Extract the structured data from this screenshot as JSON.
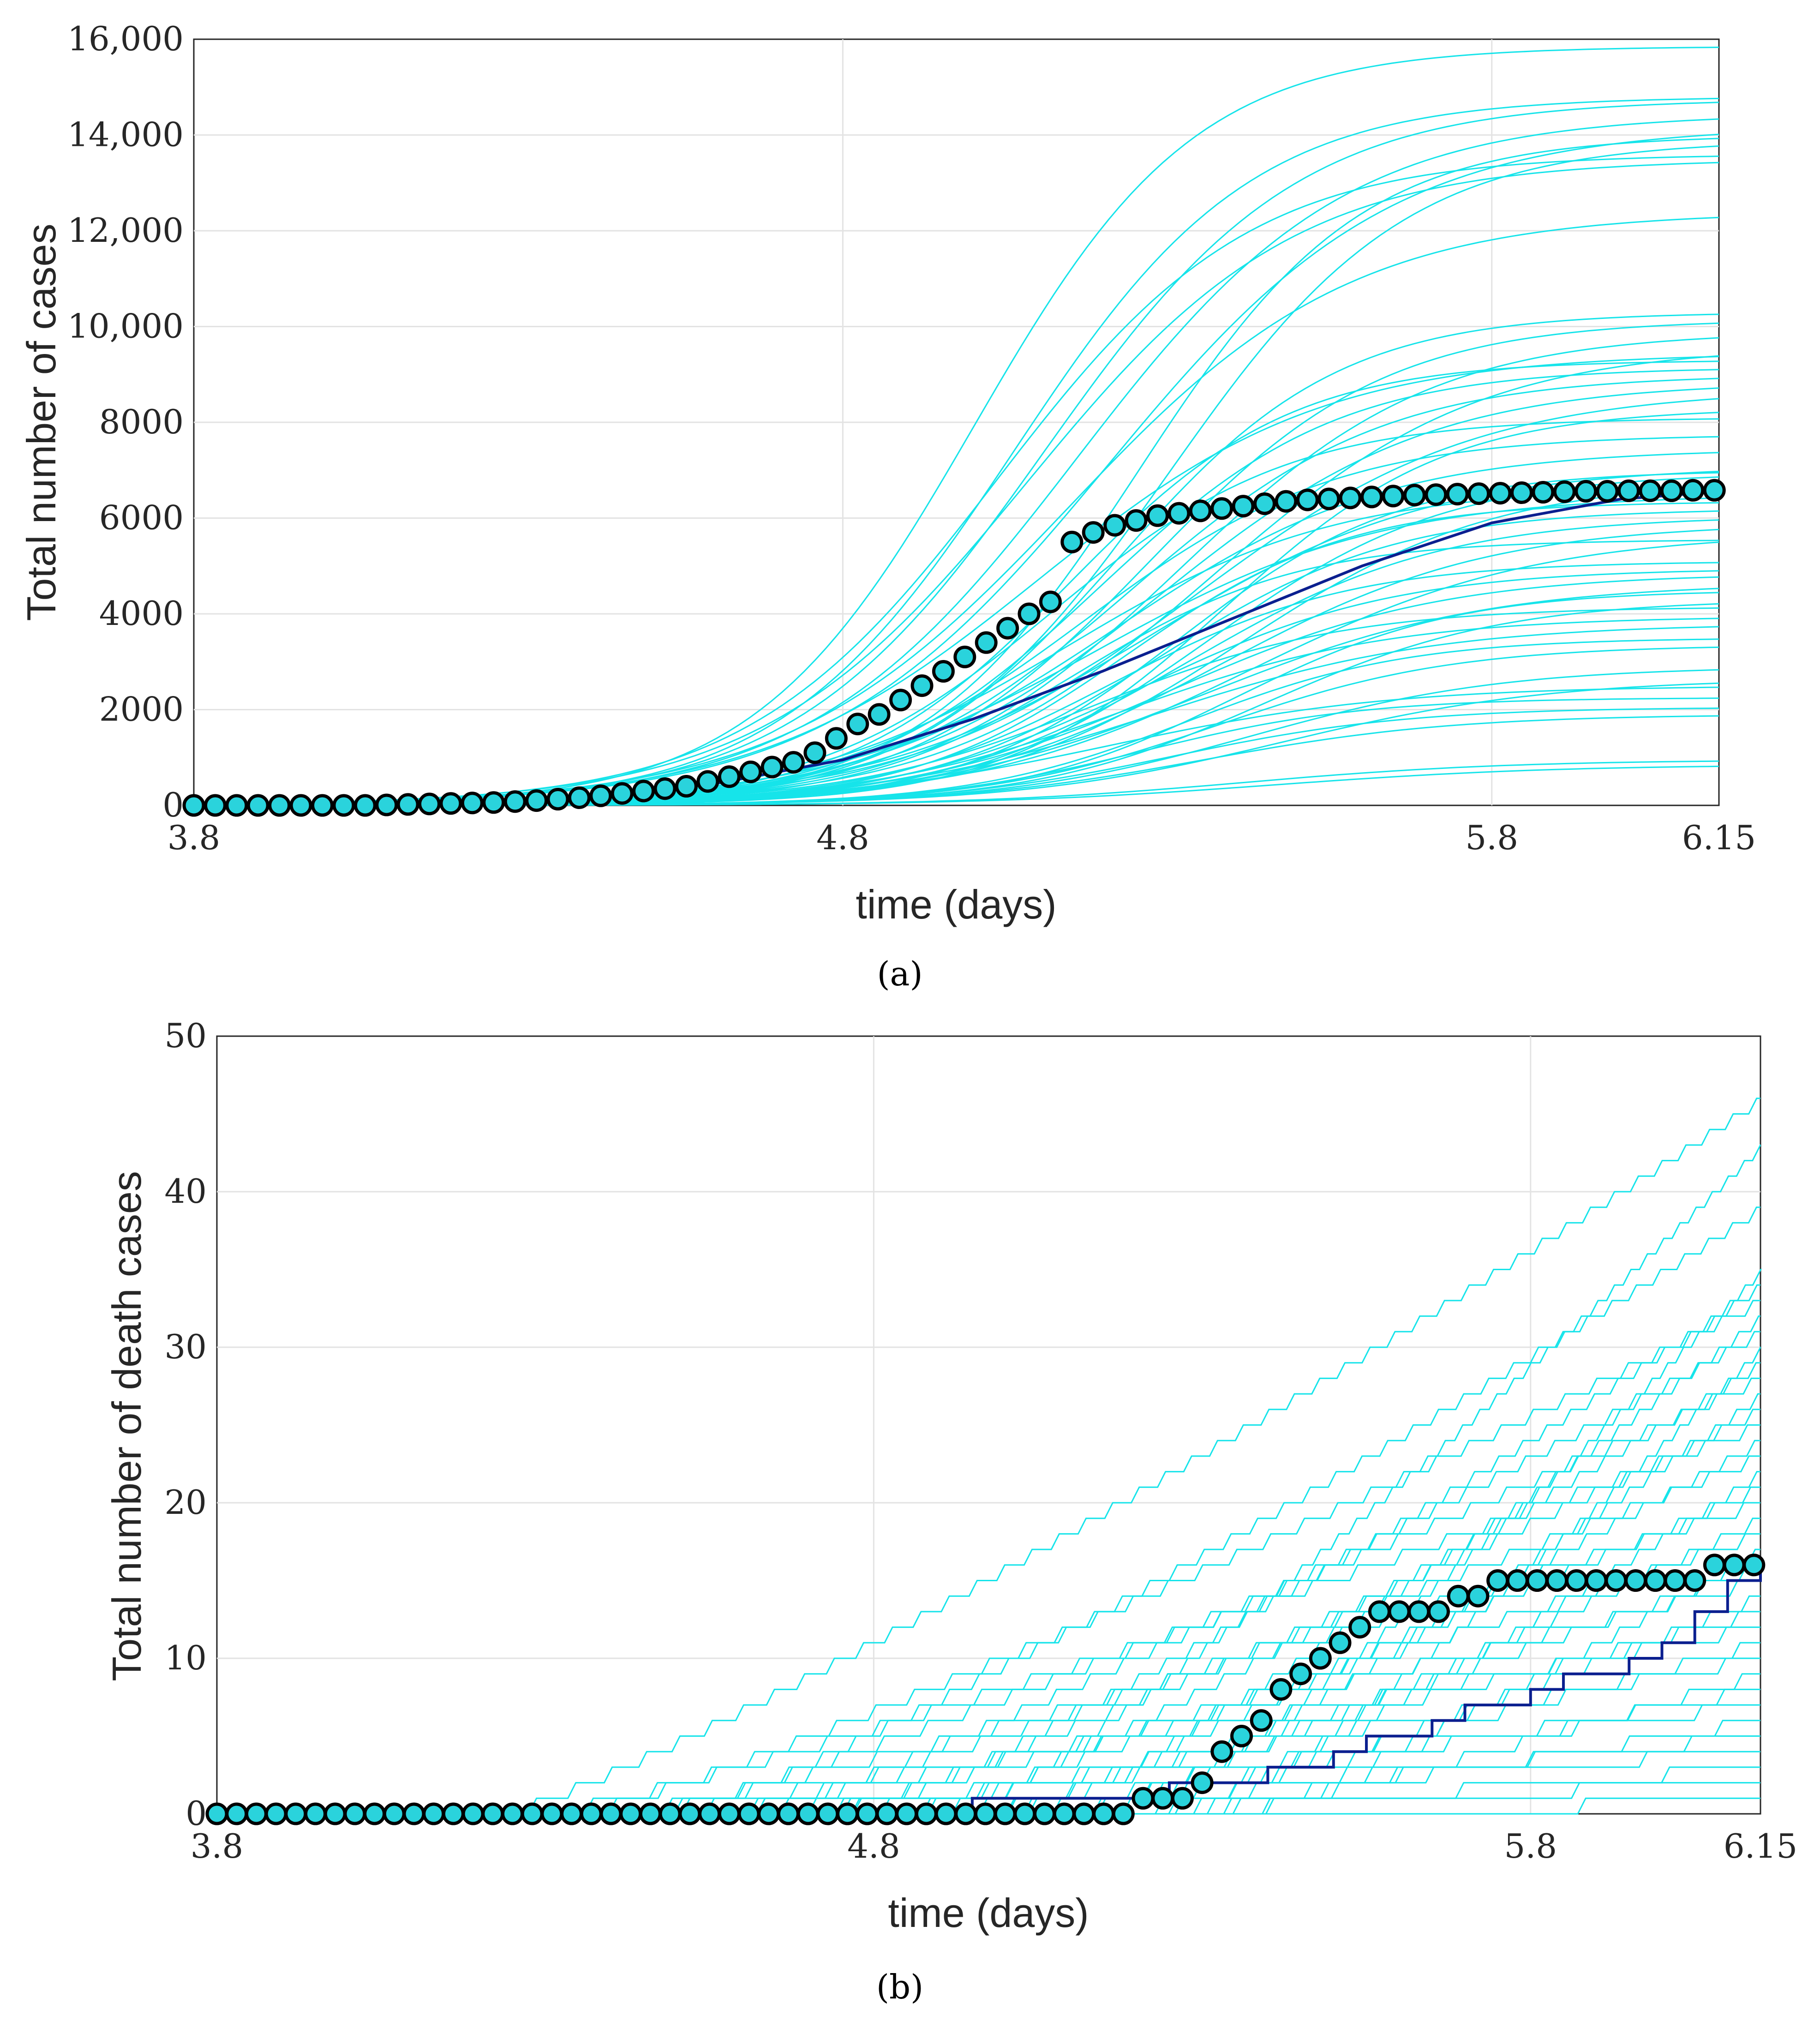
{
  "chart_data": [
    {
      "type": "line",
      "panel_label": "(a)",
      "xlabel": "time (days)",
      "ylabel": "Total number of cases",
      "xlim": [
        3.8,
        6.15
      ],
      "ylim": [
        0,
        16000
      ],
      "xticks": [
        3.8,
        4.8,
        5.8,
        6.15
      ],
      "xtick_labels": [
        "3.8",
        "4.8",
        "5.8",
        "6.15"
      ],
      "yticks": [
        0,
        2000,
        4000,
        6000,
        8000,
        10000,
        12000,
        14000,
        16000
      ],
      "ytick_labels": [
        "0",
        "2000",
        "4000",
        "6000",
        "8000",
        "10,000",
        "12,000",
        "14,000",
        "16,000"
      ],
      "grid": true,
      "colors": {
        "simulations": "#16e4ea",
        "mean": "#0b1f8f",
        "observed_face": "#2ad3dc",
        "observed_edge": "#000000"
      },
      "simulation_final_values": [
        15850,
        14800,
        14750,
        14450,
        14200,
        14000,
        13900,
        13600,
        13500,
        12400,
        10300,
        10150,
        9900,
        9600,
        9450,
        9300,
        9150,
        9000,
        8850,
        8700,
        8300,
        8100,
        7750,
        7450,
        7100,
        7000,
        6950,
        6800,
        6650,
        6500,
        6350,
        6200,
        6050,
        5900,
        5700,
        5550,
        5100,
        4950,
        4850,
        4650,
        4500,
        4300,
        4150,
        3950,
        3800,
        3500,
        3350,
        2900,
        2650,
        2500,
        2250,
        2050,
        1900,
        950,
        850
      ],
      "mean_series": {
        "name": "mean",
        "x": [
          3.8,
          4.0,
          4.2,
          4.4,
          4.6,
          4.8,
          5.0,
          5.2,
          5.4,
          5.6,
          5.8,
          6.0,
          6.15
        ],
        "values": [
          0,
          20,
          60,
          180,
          450,
          950,
          1800,
          2800,
          3900,
          5000,
          5900,
          6400,
          6550
        ]
      },
      "observed": {
        "name": "observed",
        "x": [
          3.8,
          3.833,
          3.866,
          3.899,
          3.932,
          3.965,
          3.998,
          4.031,
          4.064,
          4.097,
          4.13,
          4.163,
          4.196,
          4.229,
          4.262,
          4.295,
          4.328,
          4.361,
          4.394,
          4.427,
          4.46,
          4.493,
          4.526,
          4.559,
          4.592,
          4.625,
          4.658,
          4.691,
          4.724,
          4.757,
          4.79,
          4.823,
          4.856,
          4.889,
          4.922,
          4.955,
          4.988,
          5.021,
          5.054,
          5.087,
          5.12,
          5.153,
          5.186,
          5.219,
          5.252,
          5.285,
          5.318,
          5.351,
          5.384,
          5.417,
          5.45,
          5.483,
          5.516,
          5.549,
          5.582,
          5.615,
          5.648,
          5.681,
          5.714,
          5.747,
          5.78,
          5.813,
          5.846,
          5.879,
          5.912,
          5.945,
          5.978,
          6.011,
          6.044,
          6.077,
          6.11,
          6.143
        ],
        "values": [
          0,
          0,
          0,
          0,
          0,
          0,
          0,
          0,
          0,
          10,
          20,
          30,
          40,
          50,
          60,
          80,
          100,
          130,
          160,
          200,
          250,
          300,
          350,
          400,
          500,
          600,
          700,
          800,
          900,
          1100,
          1400,
          1700,
          1900,
          2200,
          2500,
          2800,
          3100,
          3400,
          3700,
          4000,
          4250,
          5500,
          5700,
          5850,
          5950,
          6050,
          6100,
          6150,
          6200,
          6250,
          6300,
          6350,
          6380,
          6400,
          6420,
          6440,
          6460,
          6480,
          6490,
          6500,
          6510,
          6520,
          6530,
          6540,
          6550,
          6560,
          6560,
          6570,
          6570,
          6570,
          6580,
          6580
        ]
      }
    },
    {
      "type": "line",
      "panel_label": "(b)",
      "xlabel": "time (days)",
      "ylabel": "Total number of death cases",
      "xlim": [
        3.8,
        6.15
      ],
      "ylim": [
        0,
        50
      ],
      "xticks": [
        3.8,
        4.8,
        5.8,
        6.15
      ],
      "xtick_labels": [
        "3.8",
        "4.8",
        "5.8",
        "6.15"
      ],
      "yticks": [
        0,
        10,
        20,
        30,
        40,
        50
      ],
      "ytick_labels": [
        "0",
        "10",
        "20",
        "30",
        "40",
        "50"
      ],
      "grid": true,
      "colors": {
        "simulations": "#16e4ea",
        "mean": "#0b1f8f",
        "observed_face": "#2ad3dc",
        "observed_edge": "#000000"
      },
      "simulation_final_values": [
        46,
        43,
        39,
        35,
        34,
        33,
        32,
        31,
        30,
        29,
        28,
        27,
        26,
        25,
        24,
        23,
        22,
        21,
        20,
        19,
        18,
        17,
        16,
        15,
        14,
        13,
        12,
        11,
        10,
        9,
        8,
        7,
        6,
        5,
        4,
        3,
        2,
        1
      ],
      "mean_series": {
        "name": "mean",
        "x": [
          3.8,
          4.9,
          4.95,
          5.2,
          5.25,
          5.35,
          5.4,
          5.5,
          5.55,
          5.65,
          5.7,
          5.8,
          5.85,
          5.95,
          6.0,
          6.05,
          6.1,
          6.15
        ],
        "values": [
          0,
          0,
          1,
          1,
          2,
          2,
          3,
          4,
          5,
          6,
          7,
          8,
          9,
          10,
          11,
          13,
          15,
          16
        ]
      },
      "observed": {
        "name": "observed",
        "x": [
          3.8,
          3.83,
          3.86,
          3.89,
          3.92,
          3.95,
          3.98,
          4.01,
          4.04,
          4.07,
          4.1,
          4.13,
          4.16,
          4.19,
          4.22,
          4.25,
          4.28,
          4.31,
          4.34,
          4.37,
          4.4,
          4.43,
          4.46,
          4.49,
          4.52,
          4.55,
          4.58,
          4.61,
          4.64,
          4.67,
          4.7,
          4.73,
          4.76,
          4.79,
          4.82,
          4.85,
          4.88,
          4.91,
          4.94,
          4.97,
          5.0,
          5.03,
          5.06,
          5.09,
          5.12,
          5.15,
          5.18,
          5.21,
          5.24,
          5.27,
          5.3,
          5.33,
          5.36,
          5.39,
          5.42,
          5.45,
          5.48,
          5.51,
          5.54,
          5.57,
          5.6,
          5.63,
          5.66,
          5.69,
          5.72,
          5.75,
          5.78,
          5.81,
          5.84,
          5.87,
          5.9,
          5.93,
          5.96,
          5.99,
          6.02,
          6.05,
          6.08,
          6.11,
          6.14
        ],
        "values": [
          0,
          0,
          0,
          0,
          0,
          0,
          0,
          0,
          0,
          0,
          0,
          0,
          0,
          0,
          0,
          0,
          0,
          0,
          0,
          0,
          0,
          0,
          0,
          0,
          0,
          0,
          0,
          0,
          0,
          0,
          0,
          0,
          0,
          0,
          0,
          0,
          0,
          0,
          0,
          0,
          0,
          0,
          0,
          0,
          0,
          0,
          0,
          1,
          1,
          1,
          2,
          4,
          5,
          6,
          8,
          9,
          10,
          11,
          12,
          13,
          13,
          13,
          13,
          14,
          14,
          15,
          15,
          15,
          15,
          15,
          15,
          15,
          15,
          15,
          15,
          15,
          16,
          16,
          16
        ]
      }
    }
  ]
}
